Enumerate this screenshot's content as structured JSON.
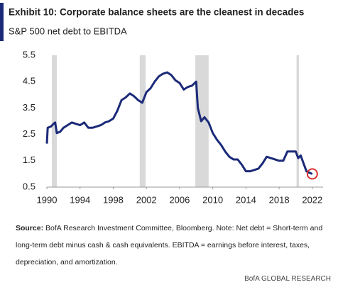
{
  "chart_data": {
    "type": "line",
    "title": "Exhibit 10: Corporate balance sheets are the cleanest in decades",
    "subtitle": "S&P 500 net debt to EBITDA",
    "x": [
      1990,
      1990.1,
      1990.5,
      1990.8,
      1991.0,
      1991.2,
      1991.6,
      1992,
      1992.5,
      1993,
      1993.5,
      1994,
      1994.5,
      1995,
      1995.5,
      1996,
      1996.5,
      1997,
      1997.5,
      1998,
      1998.5,
      1999,
      1999.5,
      2000,
      2000.5,
      2001,
      2001.5,
      2002,
      2002.5,
      2003,
      2003.5,
      2004,
      2004.5,
      2005,
      2005.5,
      2006,
      2006.5,
      2007,
      2007.5,
      2008,
      2008.2,
      2008.6,
      2009,
      2009.5,
      2010,
      2010.5,
      2011,
      2011.5,
      2012,
      2012.5,
      2013,
      2013.5,
      2014,
      2014.5,
      2015,
      2015.5,
      2016,
      2016.5,
      2017,
      2017.5,
      2018,
      2018.5,
      2019,
      2019.5,
      2020,
      2020.3,
      2020.6,
      2021,
      2021.3,
      2021.6,
      2022
    ],
    "series": [
      {
        "name": "S&P 500 net debt to EBITDA",
        "color": "#1b2a78",
        "values": [
          2.15,
          2.75,
          2.8,
          2.9,
          2.95,
          2.55,
          2.6,
          2.75,
          2.85,
          2.95,
          2.9,
          2.85,
          2.95,
          2.75,
          2.75,
          2.8,
          2.85,
          2.95,
          3.0,
          3.1,
          3.4,
          3.8,
          3.9,
          4.05,
          3.95,
          3.8,
          3.7,
          4.1,
          4.25,
          4.5,
          4.7,
          4.8,
          4.85,
          4.75,
          4.55,
          4.45,
          4.2,
          4.3,
          4.35,
          4.5,
          3.5,
          3.0,
          3.15,
          2.95,
          2.55,
          2.3,
          2.1,
          1.85,
          1.65,
          1.55,
          1.55,
          1.35,
          1.1,
          1.1,
          1.15,
          1.2,
          1.4,
          1.65,
          1.6,
          1.55,
          1.5,
          1.5,
          1.85,
          1.85,
          1.85,
          1.6,
          1.7,
          1.35,
          1.1,
          1.05,
          1.0
        ]
      }
    ],
    "recessions": [
      [
        1990.6,
        1991.2
      ],
      [
        2001.2,
        2001.9
      ],
      [
        2007.9,
        2009.5
      ],
      [
        2020.1,
        2020.4
      ]
    ],
    "xlim": [
      1990,
      2023.3
    ],
    "ylim": [
      0.5,
      5.5
    ],
    "xticks": [
      1990,
      1994,
      1998,
      2002,
      2006,
      2010,
      2014,
      2018,
      2022
    ],
    "yticks": [
      0.5,
      1.5,
      2.5,
      3.5,
      4.5,
      5.5
    ],
    "source_label": "Source:",
    "source_text": "BofA Research Investment Committee, Bloomberg. Note: Net debt = Short-term and long-term debt minus cash & cash equivalents. EBITDA = earnings before interest, taxes, depreciation, and amortization.",
    "footer": "BofA GLOBAL RESEARCH"
  }
}
